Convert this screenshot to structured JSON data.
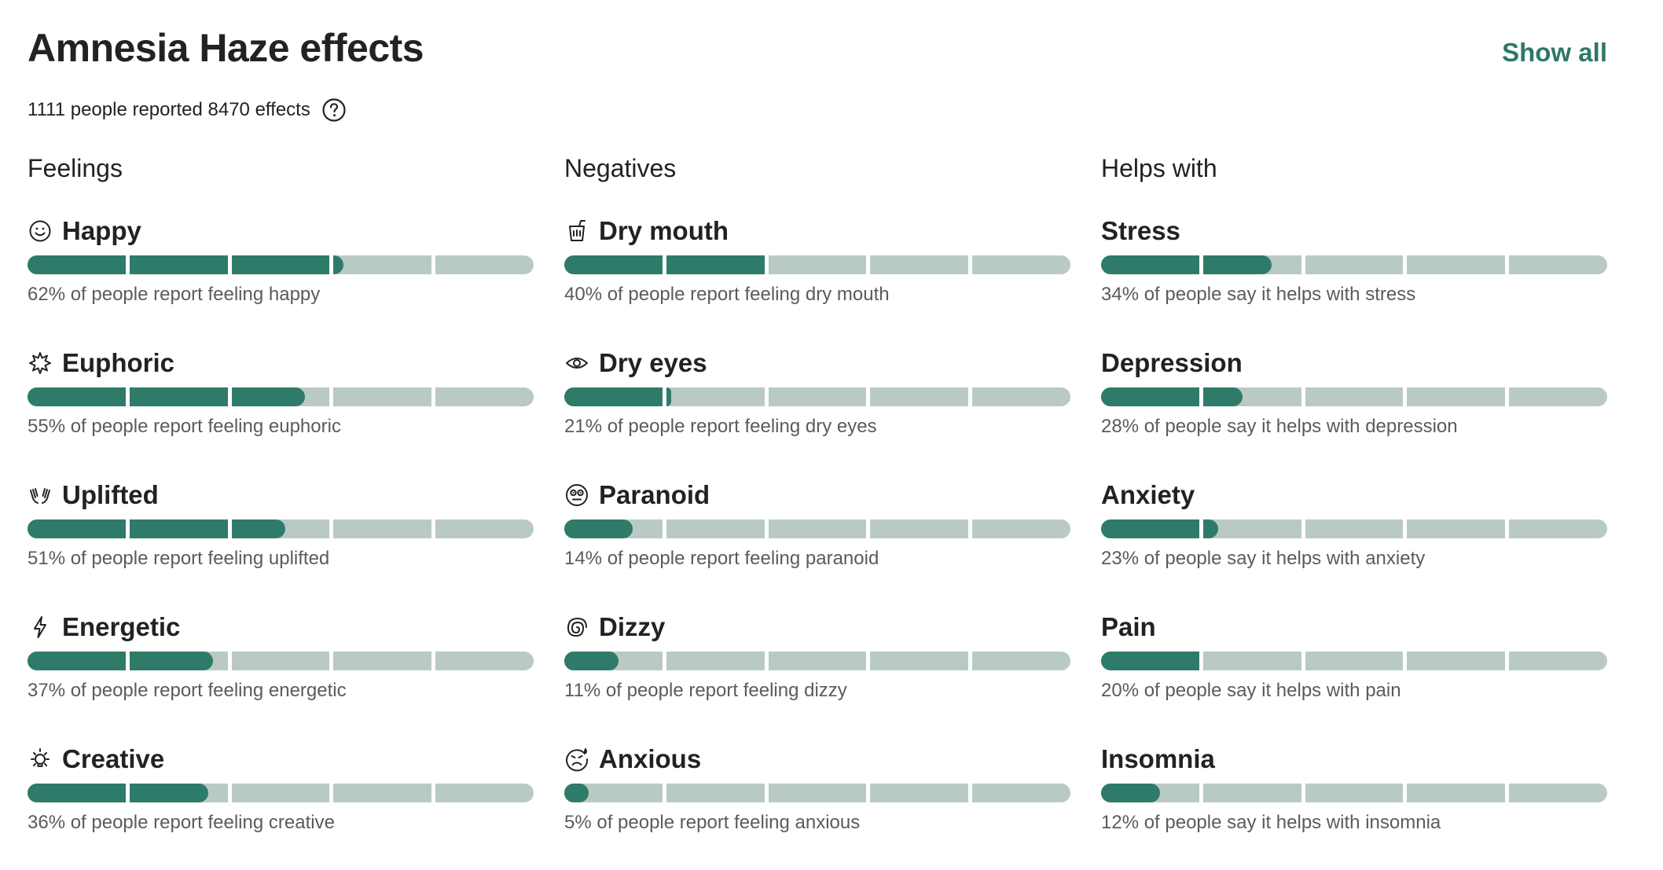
{
  "header": {
    "title": "Amnesia Haze effects",
    "show_all_label": "Show all",
    "subtitle": "1111 people reported 8470 effects"
  },
  "colors": {
    "accent": "#2f7b69",
    "track": "#b9cac4",
    "link": "#2c7866"
  },
  "columns": [
    {
      "title": "Feelings",
      "effects": [
        {
          "name": "Happy",
          "icon": "smile-icon",
          "percent": 62,
          "desc": "62% of people report feeling happy"
        },
        {
          "name": "Euphoric",
          "icon": "starburst-icon",
          "percent": 55,
          "desc": "55% of people report feeling euphoric"
        },
        {
          "name": "Uplifted",
          "icon": "raised-hands-icon",
          "percent": 51,
          "desc": "51% of people report feeling uplifted"
        },
        {
          "name": "Energetic",
          "icon": "lightning-icon",
          "percent": 37,
          "desc": "37% of people report feeling energetic"
        },
        {
          "name": "Creative",
          "icon": "lightbulb-icon",
          "percent": 36,
          "desc": "36% of people report feeling creative"
        }
      ]
    },
    {
      "title": "Negatives",
      "effects": [
        {
          "name": "Dry mouth",
          "icon": "cup-icon",
          "percent": 40,
          "desc": "40% of people report feeling dry mouth"
        },
        {
          "name": "Dry eyes",
          "icon": "eye-icon",
          "percent": 21,
          "desc": "21% of people report feeling dry eyes"
        },
        {
          "name": "Paranoid",
          "icon": "paranoid-face-icon",
          "percent": 14,
          "desc": "14% of people report feeling paranoid"
        },
        {
          "name": "Dizzy",
          "icon": "spiral-icon",
          "percent": 11,
          "desc": "11% of people report feeling dizzy"
        },
        {
          "name": "Anxious",
          "icon": "anxious-face-icon",
          "percent": 5,
          "desc": "5% of people report feeling anxious"
        }
      ]
    },
    {
      "title": "Helps with",
      "effects": [
        {
          "name": "Stress",
          "icon": "",
          "percent": 34,
          "desc": "34% of people say it helps with stress"
        },
        {
          "name": "Depression",
          "icon": "",
          "percent": 28,
          "desc": "28% of people say it helps with depression"
        },
        {
          "name": "Anxiety",
          "icon": "",
          "percent": 23,
          "desc": "23% of people say it helps with anxiety"
        },
        {
          "name": "Pain",
          "icon": "",
          "percent": 20,
          "desc": "20% of people say it helps with pain"
        },
        {
          "name": "Insomnia",
          "icon": "",
          "percent": 12,
          "desc": "12% of people say it helps with insomnia"
        }
      ]
    }
  ]
}
